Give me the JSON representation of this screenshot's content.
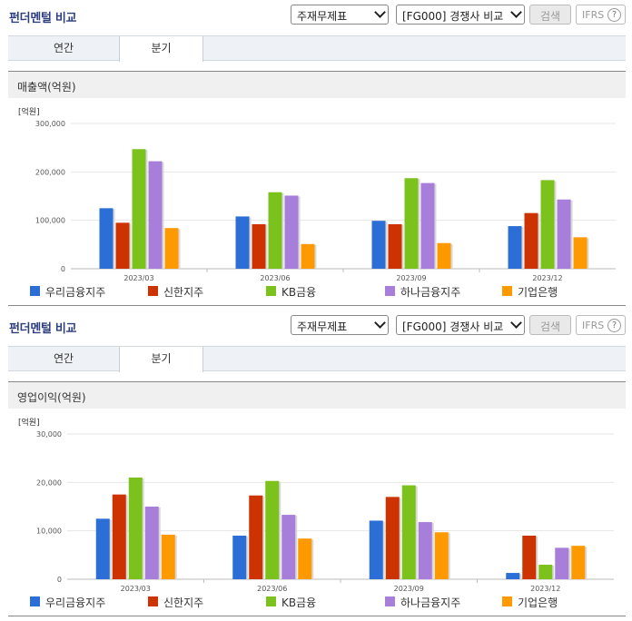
{
  "panels": [
    {
      "title": "펀더멘털 비교",
      "select1": "주재무제표",
      "select2": "[FG000] 경쟁사 비교",
      "search_label": "검색",
      "ifrs_label": "IFRS",
      "help_label": "?",
      "tabs": [
        {
          "label": "연간"
        },
        {
          "label": "분기"
        }
      ],
      "active_tab": "분기",
      "section_title": "매출액(억원)"
    },
    {
      "title": "펀더멘털 비교",
      "select1": "주재무제표",
      "select2": "[FG000] 경쟁사 비교",
      "search_label": "검색",
      "ifrs_label": "IFRS",
      "help_label": "?",
      "tabs": [
        {
          "label": "연간"
        },
        {
          "label": "분기"
        }
      ],
      "active_tab": "분기",
      "section_title": "영업이익(억원)"
    }
  ],
  "colors": {
    "우리금융지주": "#2b6fd6",
    "신한지주": "#cc3300",
    "KB금융": "#7cc21c",
    "하나금융지주": "#a77fdb",
    "기업은행": "#ff9900"
  },
  "chart_data": [
    {
      "type": "bar",
      "title": "매출액(억원)",
      "unit_label": "[억원]",
      "categories": [
        "2023/03",
        "2023/06",
        "2023/09",
        "2023/12"
      ],
      "ylim": [
        0,
        300000
      ],
      "yticks": [
        "0",
        "100,000",
        "200,000",
        "300,000"
      ],
      "legend_position": "bottom",
      "series": [
        {
          "name": "우리금융지주",
          "values": [
            125000,
            108000,
            99000,
            88000
          ]
        },
        {
          "name": "신한지주",
          "values": [
            95000,
            92000,
            92000,
            115000
          ]
        },
        {
          "name": "KB금융",
          "values": [
            247000,
            158000,
            187000,
            183000
          ]
        },
        {
          "name": "하나금융지주",
          "values": [
            222000,
            151000,
            177000,
            143000
          ]
        },
        {
          "name": "기업은행",
          "values": [
            84000,
            51000,
            53000,
            65000
          ]
        }
      ]
    },
    {
      "type": "bar",
      "title": "영업이익(억원)",
      "unit_label": "[억원]",
      "categories": [
        "2023/03",
        "2023/06",
        "2023/09",
        "2023/12"
      ],
      "ylim": [
        0,
        30000
      ],
      "yticks": [
        "0",
        "10,000",
        "20,000",
        "30,000"
      ],
      "legend_position": "bottom",
      "series": [
        {
          "name": "우리금융지주",
          "values": [
            12500,
            9000,
            12100,
            1300
          ]
        },
        {
          "name": "신한지주",
          "values": [
            17500,
            17300,
            17000,
            9000
          ]
        },
        {
          "name": "KB금융",
          "values": [
            21000,
            20300,
            19400,
            3000
          ]
        },
        {
          "name": "하나금융지주",
          "values": [
            15000,
            13300,
            11800,
            6500
          ]
        },
        {
          "name": "기업은행",
          "values": [
            9200,
            8400,
            9700,
            6900
          ]
        }
      ]
    }
  ]
}
